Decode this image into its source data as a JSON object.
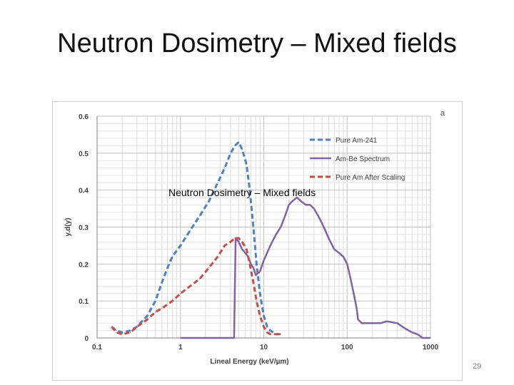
{
  "slide": {
    "title": "Neutron Dosimetry – Mixed fields",
    "overlay_caption": "Neutron Dosimetry – Mixed fields",
    "corner_letter": "a",
    "slide_number": "29"
  },
  "chart_data": {
    "type": "line",
    "xlabel": "Lineal Energy (keV/µm)",
    "ylabel": "y.d(y)",
    "x_scale": "log",
    "xlim": [
      0.1,
      1000
    ],
    "ylim": [
      0,
      0.6
    ],
    "x_ticks": [
      "0.1",
      "1",
      "10",
      "100",
      "1000"
    ],
    "y_ticks": [
      "0",
      "0.1",
      "0.2",
      "0.3",
      "0.4",
      "0.5",
      "0.6"
    ],
    "grid": true,
    "legend_position": "top-right",
    "series": [
      {
        "name": "Pure Am-241",
        "color": "#4f81bd",
        "dash": "dash",
        "points": [
          [
            0.15,
            0.03
          ],
          [
            0.17,
            0.02
          ],
          [
            0.2,
            0.015
          ],
          [
            0.25,
            0.02
          ],
          [
            0.3,
            0.03
          ],
          [
            0.4,
            0.06
          ],
          [
            0.5,
            0.1
          ],
          [
            0.6,
            0.15
          ],
          [
            0.7,
            0.19
          ],
          [
            0.8,
            0.22
          ],
          [
            1.0,
            0.25
          ],
          [
            1.3,
            0.29
          ],
          [
            1.7,
            0.33
          ],
          [
            2.2,
            0.37
          ],
          [
            2.8,
            0.42
          ],
          [
            3.4,
            0.46
          ],
          [
            4.0,
            0.5
          ],
          [
            4.5,
            0.52
          ],
          [
            5.0,
            0.53
          ],
          [
            5.5,
            0.51
          ],
          [
            6.2,
            0.47
          ],
          [
            6.8,
            0.4
          ],
          [
            7.5,
            0.3
          ],
          [
            8.2,
            0.2
          ],
          [
            9.0,
            0.12
          ],
          [
            10.0,
            0.06
          ],
          [
            11.0,
            0.03
          ],
          [
            12.0,
            0.02
          ],
          [
            14.0,
            0.01
          ],
          [
            16.0,
            0.01
          ]
        ]
      },
      {
        "name": "Am-Be Spectrum",
        "color": "#8064a2",
        "dash": "solid",
        "points": [
          [
            1.0,
            0.0
          ],
          [
            4.4,
            0.0
          ],
          [
            4.6,
            0.27
          ],
          [
            5.0,
            0.26
          ],
          [
            5.5,
            0.24
          ],
          [
            6.0,
            0.23
          ],
          [
            6.5,
            0.22
          ],
          [
            7.0,
            0.2
          ],
          [
            7.5,
            0.19
          ],
          [
            8.0,
            0.17
          ],
          [
            9.0,
            0.18
          ],
          [
            10.0,
            0.21
          ],
          [
            12.0,
            0.25
          ],
          [
            14.0,
            0.28
          ],
          [
            16.0,
            0.3
          ],
          [
            18.0,
            0.33
          ],
          [
            20.0,
            0.36
          ],
          [
            22.0,
            0.37
          ],
          [
            25.0,
            0.38
          ],
          [
            28.0,
            0.37
          ],
          [
            32.0,
            0.36
          ],
          [
            36.0,
            0.36
          ],
          [
            40.0,
            0.35
          ],
          [
            45.0,
            0.33
          ],
          [
            50.0,
            0.31
          ],
          [
            55.0,
            0.29
          ],
          [
            60.0,
            0.27
          ],
          [
            70.0,
            0.24
          ],
          [
            80.0,
            0.23
          ],
          [
            90.0,
            0.22
          ],
          [
            100.0,
            0.2
          ],
          [
            110.0,
            0.16
          ],
          [
            120.0,
            0.12
          ],
          [
            130.0,
            0.08
          ],
          [
            135.0,
            0.05
          ],
          [
            150.0,
            0.04
          ],
          [
            200.0,
            0.04
          ],
          [
            250.0,
            0.04
          ],
          [
            300.0,
            0.045
          ],
          [
            400.0,
            0.04
          ],
          [
            500.0,
            0.025
          ],
          [
            600.0,
            0.015
          ],
          [
            700.0,
            0.01
          ],
          [
            800.0,
            0.0
          ],
          [
            1000.0,
            0.0
          ]
        ]
      },
      {
        "name": "Pure Am After Scaling",
        "color": "#c0504d",
        "dash": "dash",
        "points": [
          [
            0.15,
            0.03
          ],
          [
            0.17,
            0.015
          ],
          [
            0.2,
            0.01
          ],
          [
            0.25,
            0.015
          ],
          [
            0.3,
            0.03
          ],
          [
            0.4,
            0.05
          ],
          [
            0.5,
            0.07
          ],
          [
            0.6,
            0.08
          ],
          [
            0.8,
            0.1
          ],
          [
            1.0,
            0.12
          ],
          [
            1.3,
            0.14
          ],
          [
            1.7,
            0.16
          ],
          [
            2.2,
            0.19
          ],
          [
            2.8,
            0.22
          ],
          [
            3.4,
            0.25
          ],
          [
            4.0,
            0.26
          ],
          [
            4.5,
            0.27
          ],
          [
            5.0,
            0.27
          ],
          [
            5.5,
            0.26
          ],
          [
            6.2,
            0.24
          ],
          [
            6.8,
            0.2
          ],
          [
            7.5,
            0.15
          ],
          [
            8.2,
            0.1
          ],
          [
            9.0,
            0.06
          ],
          [
            10.0,
            0.03
          ],
          [
            11.0,
            0.015
          ],
          [
            12.0,
            0.01
          ],
          [
            14.0,
            0.01
          ],
          [
            16.0,
            0.01
          ]
        ]
      }
    ]
  }
}
